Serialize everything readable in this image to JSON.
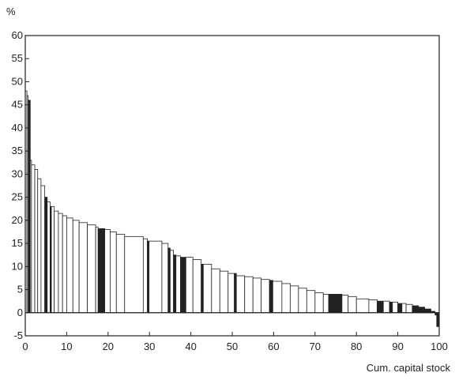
{
  "chart_data": {
    "type": "bar",
    "title": "",
    "ylabel": "%",
    "xlabel": "Cum. capital stock",
    "xlim": [
      0,
      100
    ],
    "ylim": [
      -5,
      60
    ],
    "xticks": [
      0,
      10,
      20,
      30,
      40,
      50,
      60,
      70,
      80,
      90,
      100
    ],
    "yticks": [
      -5,
      0,
      5,
      10,
      15,
      20,
      25,
      30,
      35,
      40,
      45,
      50,
      55,
      60
    ],
    "grid": false,
    "legend": "none",
    "colors": {
      "fill": "#ffffff",
      "highlight": "#222222",
      "line": "#222222"
    },
    "segments": [
      {
        "x0": 0.0,
        "x1": 0.4,
        "value": 48,
        "shaded": false
      },
      {
        "x0": 0.4,
        "x1": 0.7,
        "value": 47,
        "shaded": false
      },
      {
        "x0": 0.7,
        "x1": 1.2,
        "value": 46,
        "shaded": true
      },
      {
        "x0": 1.2,
        "x1": 1.5,
        "value": 33,
        "shaded": false
      },
      {
        "x0": 1.5,
        "x1": 2.3,
        "value": 32,
        "shaded": false
      },
      {
        "x0": 2.3,
        "x1": 3.0,
        "value": 31,
        "shaded": false
      },
      {
        "x0": 3.0,
        "x1": 3.8,
        "value": 29,
        "shaded": false
      },
      {
        "x0": 3.8,
        "x1": 4.7,
        "value": 27.5,
        "shaded": false
      },
      {
        "x0": 4.7,
        "x1": 5.3,
        "value": 25,
        "shaded": true
      },
      {
        "x0": 5.3,
        "x1": 6.0,
        "value": 24,
        "shaded": false
      },
      {
        "x0": 6.0,
        "x1": 6.3,
        "value": 23,
        "shaded": true
      },
      {
        "x0": 6.3,
        "x1": 7.0,
        "value": 23,
        "shaded": false
      },
      {
        "x0": 7.0,
        "x1": 8.0,
        "value": 22,
        "shaded": false
      },
      {
        "x0": 8.0,
        "x1": 9.0,
        "value": 21.5,
        "shaded": false
      },
      {
        "x0": 9.0,
        "x1": 10.0,
        "value": 21,
        "shaded": false
      },
      {
        "x0": 10.0,
        "x1": 11.5,
        "value": 20.5,
        "shaded": false
      },
      {
        "x0": 11.5,
        "x1": 13.0,
        "value": 20,
        "shaded": false
      },
      {
        "x0": 13.0,
        "x1": 15.0,
        "value": 19.5,
        "shaded": false
      },
      {
        "x0": 15.0,
        "x1": 17.0,
        "value": 19,
        "shaded": false
      },
      {
        "x0": 17.0,
        "x1": 17.6,
        "value": 18.5,
        "shaded": false
      },
      {
        "x0": 17.6,
        "x1": 19.2,
        "value": 18.2,
        "shaded": true
      },
      {
        "x0": 19.2,
        "x1": 20.5,
        "value": 18,
        "shaded": false
      },
      {
        "x0": 20.5,
        "x1": 22.0,
        "value": 17.5,
        "shaded": false
      },
      {
        "x0": 22.0,
        "x1": 24.0,
        "value": 17,
        "shaded": false
      },
      {
        "x0": 24.0,
        "x1": 28.5,
        "value": 16.5,
        "shaded": false
      },
      {
        "x0": 28.5,
        "x1": 29.5,
        "value": 16,
        "shaded": false
      },
      {
        "x0": 29.5,
        "x1": 29.9,
        "value": 15.5,
        "shaded": true
      },
      {
        "x0": 29.9,
        "x1": 33.0,
        "value": 15.5,
        "shaded": false
      },
      {
        "x0": 33.0,
        "x1": 34.5,
        "value": 15,
        "shaded": false
      },
      {
        "x0": 34.5,
        "x1": 35.0,
        "value": 14,
        "shaded": true
      },
      {
        "x0": 35.0,
        "x1": 35.8,
        "value": 13.5,
        "shaded": false
      },
      {
        "x0": 35.8,
        "x1": 36.4,
        "value": 12.5,
        "shaded": true
      },
      {
        "x0": 36.4,
        "x1": 37.5,
        "value": 12.3,
        "shaded": false
      },
      {
        "x0": 37.5,
        "x1": 38.8,
        "value": 12,
        "shaded": true
      },
      {
        "x0": 38.8,
        "x1": 40.5,
        "value": 12,
        "shaded": false
      },
      {
        "x0": 40.5,
        "x1": 42.5,
        "value": 11.5,
        "shaded": false
      },
      {
        "x0": 42.5,
        "x1": 43.0,
        "value": 10.5,
        "shaded": true
      },
      {
        "x0": 43.0,
        "x1": 45.0,
        "value": 10.5,
        "shaded": false
      },
      {
        "x0": 45.0,
        "x1": 47.0,
        "value": 9.5,
        "shaded": false
      },
      {
        "x0": 47.0,
        "x1": 49.0,
        "value": 9,
        "shaded": false
      },
      {
        "x0": 49.0,
        "x1": 50.5,
        "value": 8.5,
        "shaded": false
      },
      {
        "x0": 50.5,
        "x1": 51.0,
        "value": 8.5,
        "shaded": true
      },
      {
        "x0": 51.0,
        "x1": 53.0,
        "value": 8,
        "shaded": false
      },
      {
        "x0": 53.0,
        "x1": 55.0,
        "value": 7.8,
        "shaded": false
      },
      {
        "x0": 55.0,
        "x1": 57.0,
        "value": 7.5,
        "shaded": false
      },
      {
        "x0": 57.0,
        "x1": 59.0,
        "value": 7.2,
        "shaded": false
      },
      {
        "x0": 59.0,
        "x1": 59.8,
        "value": 7,
        "shaded": true
      },
      {
        "x0": 59.8,
        "x1": 62.0,
        "value": 6.8,
        "shaded": false
      },
      {
        "x0": 62.0,
        "x1": 64.0,
        "value": 6.3,
        "shaded": false
      },
      {
        "x0": 64.0,
        "x1": 66.0,
        "value": 5.8,
        "shaded": false
      },
      {
        "x0": 66.0,
        "x1": 68.0,
        "value": 5.3,
        "shaded": false
      },
      {
        "x0": 68.0,
        "x1": 70.0,
        "value": 4.8,
        "shaded": false
      },
      {
        "x0": 70.0,
        "x1": 72.0,
        "value": 4.3,
        "shaded": false
      },
      {
        "x0": 72.0,
        "x1": 73.3,
        "value": 4,
        "shaded": false
      },
      {
        "x0": 73.3,
        "x1": 76.5,
        "value": 4,
        "shaded": true
      },
      {
        "x0": 76.5,
        "x1": 78.0,
        "value": 3.8,
        "shaded": false
      },
      {
        "x0": 78.0,
        "x1": 80.0,
        "value": 3.5,
        "shaded": false
      },
      {
        "x0": 80.0,
        "x1": 83.0,
        "value": 3,
        "shaded": false
      },
      {
        "x0": 83.0,
        "x1": 85.0,
        "value": 2.8,
        "shaded": false
      },
      {
        "x0": 85.0,
        "x1": 86.5,
        "value": 2.5,
        "shaded": true
      },
      {
        "x0": 86.5,
        "x1": 88.0,
        "value": 2.5,
        "shaded": false
      },
      {
        "x0": 88.0,
        "x1": 88.7,
        "value": 2.3,
        "shaded": true
      },
      {
        "x0": 88.7,
        "x1": 90.0,
        "value": 2.3,
        "shaded": false
      },
      {
        "x0": 90.0,
        "x1": 91.0,
        "value": 2,
        "shaded": true
      },
      {
        "x0": 91.0,
        "x1": 92.0,
        "value": 2,
        "shaded": false
      },
      {
        "x0": 92.0,
        "x1": 93.5,
        "value": 1.8,
        "shaded": false
      },
      {
        "x0": 93.5,
        "x1": 95.0,
        "value": 1.5,
        "shaded": true
      },
      {
        "x0": 95.0,
        "x1": 96.5,
        "value": 1.2,
        "shaded": true
      },
      {
        "x0": 96.5,
        "x1": 98.0,
        "value": 0.8,
        "shaded": true
      },
      {
        "x0": 98.0,
        "x1": 99.0,
        "value": 0.3,
        "shaded": true
      },
      {
        "x0": 99.0,
        "x1": 99.4,
        "value": -0.5,
        "shaded": true
      },
      {
        "x0": 99.4,
        "x1": 100.0,
        "value": -3,
        "shaded": true
      }
    ]
  }
}
